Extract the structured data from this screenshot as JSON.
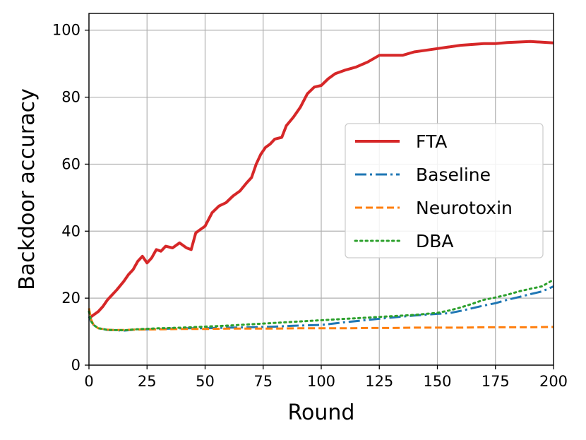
{
  "chart_data": {
    "type": "line",
    "xlabel": "Round",
    "ylabel": "Backdoor accuracy",
    "xlim": [
      0,
      200
    ],
    "ylim": [
      0,
      105
    ],
    "xticks": [
      "0",
      "25",
      "50",
      "75",
      "100",
      "125",
      "150",
      "175",
      "200"
    ],
    "yticks": [
      "0",
      "20",
      "40",
      "60",
      "80",
      "100"
    ],
    "grid": true,
    "legend_position": "center-right",
    "series": [
      {
        "name": "FTA",
        "color": "#d62728",
        "style": "solid",
        "x": [
          0,
          2,
          4,
          6,
          8,
          10,
          12,
          15,
          17,
          19,
          21,
          23,
          25,
          27,
          29,
          31,
          33,
          36,
          39,
          42,
          44,
          46,
          48,
          50,
          53,
          56,
          59,
          62,
          65,
          68,
          70,
          72,
          74,
          76,
          78,
          80,
          83,
          85,
          88,
          91,
          94,
          97,
          100,
          103,
          106,
          110,
          115,
          120,
          125,
          130,
          135,
          140,
          145,
          150,
          160,
          170,
          175,
          180,
          190,
          200
        ],
        "y": [
          14,
          15,
          16,
          17.5,
          19.5,
          21,
          22.5,
          25,
          27,
          28.5,
          31,
          32.5,
          30.5,
          32,
          34.5,
          34,
          35.5,
          35,
          36.5,
          35,
          34.5,
          39.5,
          40.5,
          41.5,
          45.5,
          47.5,
          48.5,
          50.5,
          52,
          54.5,
          56,
          60,
          63,
          65,
          66,
          67.5,
          68,
          71.5,
          74,
          77,
          81,
          83,
          83.5,
          85.5,
          87,
          88,
          89,
          90.5,
          92.5,
          92.5,
          92.5,
          93.5,
          94,
          94.5,
          95.5,
          96,
          96,
          96.3,
          96.6,
          96.2
        ]
      },
      {
        "name": "Baseline",
        "color": "#1f77b4",
        "style": "dashdot",
        "x": [
          0,
          1,
          2,
          4,
          6,
          8,
          10,
          15,
          20,
          30,
          40,
          50,
          60,
          70,
          80,
          90,
          100,
          110,
          120,
          130,
          140,
          150,
          155,
          160,
          165,
          170,
          175,
          180,
          185,
          190,
          195,
          200
        ],
        "y": [
          14.5,
          13,
          12,
          11,
          10.8,
          10.5,
          10.5,
          10.3,
          10.6,
          10.8,
          11,
          11,
          11.2,
          11.3,
          11.5,
          11.8,
          12,
          12.8,
          13.5,
          14.2,
          14.8,
          15.3,
          15.5,
          16.2,
          17,
          17.8,
          18.5,
          19.5,
          20.3,
          21.2,
          22,
          23.5
        ]
      },
      {
        "name": "Neurotoxin",
        "color": "#ff7f0e",
        "style": "dashed",
        "x": [
          0,
          1,
          2,
          4,
          6,
          8,
          10,
          15,
          20,
          30,
          40,
          50,
          60,
          70,
          80,
          90,
          100,
          110,
          120,
          130,
          140,
          150,
          160,
          170,
          180,
          190,
          200
        ],
        "y": [
          17,
          13.5,
          12,
          11,
          10.8,
          10.6,
          10.5,
          10.5,
          10.6,
          10.7,
          10.8,
          10.8,
          10.9,
          10.9,
          10.9,
          11,
          11,
          11,
          11.1,
          11.1,
          11.2,
          11.2,
          11.2,
          11.3,
          11.3,
          11.3,
          11.4
        ]
      },
      {
        "name": "DBA",
        "color": "#2ca02c",
        "style": "dotted",
        "x": [
          0,
          1,
          2,
          4,
          6,
          8,
          10,
          15,
          20,
          30,
          40,
          50,
          60,
          70,
          80,
          90,
          100,
          110,
          120,
          130,
          140,
          150,
          155,
          160,
          165,
          170,
          175,
          180,
          185,
          190,
          195,
          200
        ],
        "y": [
          16,
          13,
          12,
          11,
          10.8,
          10.5,
          10.5,
          10.4,
          10.7,
          11,
          11.2,
          11.5,
          11.8,
          12.2,
          12.6,
          13,
          13.4,
          13.8,
          14.2,
          14.6,
          15,
          15.6,
          16.3,
          17.2,
          18.3,
          19.5,
          20.2,
          21,
          22,
          22.8,
          23.5,
          25.5
        ]
      }
    ]
  }
}
